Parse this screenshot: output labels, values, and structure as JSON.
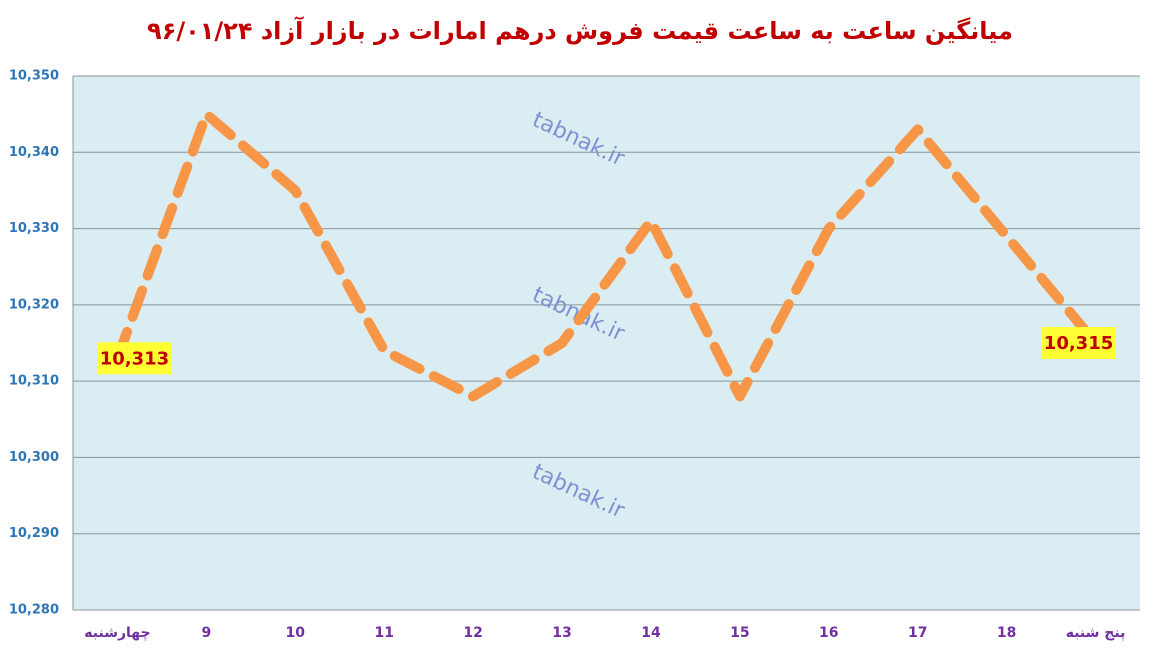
{
  "chart_data": {
    "type": "line",
    "title": "میانگین ساعت به ساعت قیمت فروش درهم امارات در بازار آزاد ۹۶/۰۱/۲۴",
    "categories": [
      "چهارشنبه",
      "9",
      "10",
      "11",
      "12",
      "13",
      "14",
      "15",
      "16",
      "17",
      "18",
      "پنج شنبه"
    ],
    "series": [
      {
        "name": "درهم",
        "color": "#f79646",
        "values": [
          10313,
          10345,
          10335,
          10314,
          10308,
          10315,
          10331,
          10308,
          10330,
          10343,
          10329,
          10315
        ],
        "value_labels": [
          "10,313",
          null,
          null,
          null,
          null,
          null,
          null,
          null,
          null,
          null,
          null,
          "10,315"
        ]
      }
    ],
    "ylim": [
      10280,
      10350
    ],
    "yticks": [
      {
        "value": 10280,
        "label": "10,280"
      },
      {
        "value": 10290,
        "label": "10,290"
      },
      {
        "value": 10300,
        "label": "10,300"
      },
      {
        "value": 10310,
        "label": "10,310"
      },
      {
        "value": 10320,
        "label": "10,320"
      },
      {
        "value": 10330,
        "label": "10,330"
      },
      {
        "value": 10340,
        "label": "10,340"
      },
      {
        "value": 10350,
        "label": "10,350"
      }
    ],
    "grid": true,
    "annotations": [
      "tabnak.ir",
      "tabnak.ir",
      "tabnak.ir"
    ]
  }
}
